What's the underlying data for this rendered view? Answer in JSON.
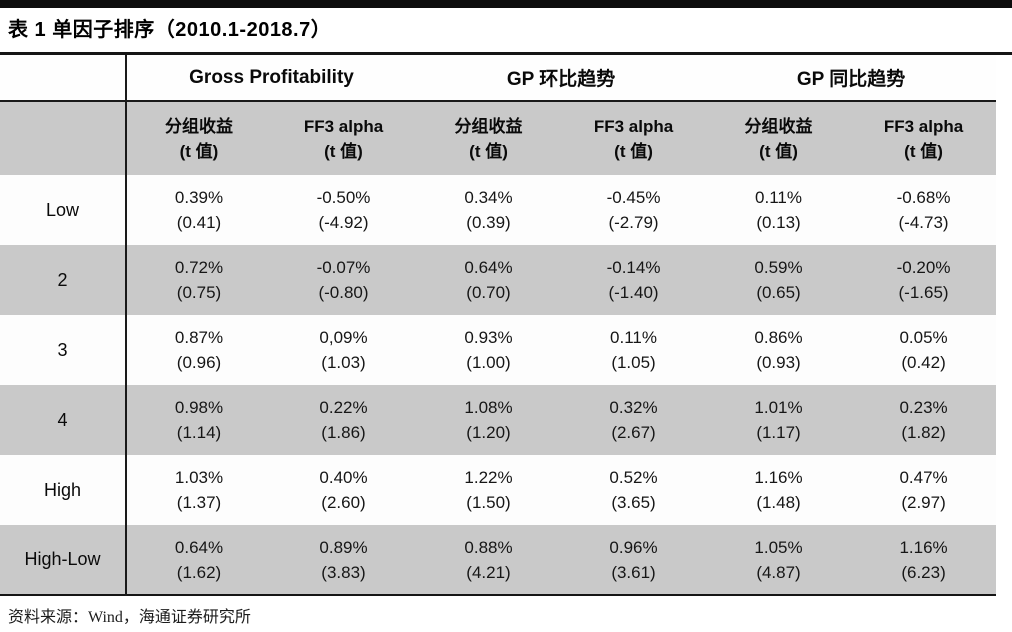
{
  "page": {
    "title": "表 1 单因子排序（2010.1-2018.7）",
    "source_note": "资料来源：Wind，海通证券研究所"
  },
  "colors": {
    "shaded_row": "#c9c9c9",
    "rule": "#151515",
    "text": "#111111"
  },
  "table": {
    "corner_label": "",
    "groups": [
      {
        "label": "Gross Profitability"
      },
      {
        "label": "GP 环比趋势"
      },
      {
        "label": "GP 同比趋势"
      }
    ],
    "subheaders": [
      {
        "line1": "分组收益",
        "line2": "(t 值)"
      },
      {
        "line1": "FF3 alpha",
        "line2": "(t 值)"
      },
      {
        "line1": "分组收益",
        "line2": "(t 值)"
      },
      {
        "line1": "FF3 alpha",
        "line2": "(t 值)"
      },
      {
        "line1": "分组收益",
        "line2": "(t 值)"
      },
      {
        "line1": "FF3 alpha",
        "line2": "(t 值)"
      }
    ],
    "rows": [
      {
        "label": "Low",
        "shaded": false,
        "cells": [
          {
            "value": "0.39%",
            "t": "(0.41)"
          },
          {
            "value": "-0.50%",
            "t": "(-4.92)"
          },
          {
            "value": "0.34%",
            "t": "(0.39)"
          },
          {
            "value": "-0.45%",
            "t": "(-2.79)"
          },
          {
            "value": "0.11%",
            "t": "(0.13)"
          },
          {
            "value": "-0.68%",
            "t": "(-4.73)"
          }
        ]
      },
      {
        "label": "2",
        "shaded": true,
        "cells": [
          {
            "value": "0.72%",
            "t": "(0.75)"
          },
          {
            "value": "-0.07%",
            "t": "(-0.80)"
          },
          {
            "value": "0.64%",
            "t": "(0.70)"
          },
          {
            "value": "-0.14%",
            "t": "(-1.40)"
          },
          {
            "value": "0.59%",
            "t": "(0.65)"
          },
          {
            "value": "-0.20%",
            "t": "(-1.65)"
          }
        ]
      },
      {
        "label": "3",
        "shaded": false,
        "cells": [
          {
            "value": "0.87%",
            "t": "(0.96)"
          },
          {
            "value": "0,09%",
            "t": "(1.03)"
          },
          {
            "value": "0.93%",
            "t": "(1.00)"
          },
          {
            "value": "0.11%",
            "t": "(1.05)"
          },
          {
            "value": "0.86%",
            "t": "(0.93)"
          },
          {
            "value": "0.05%",
            "t": "(0.42)"
          }
        ]
      },
      {
        "label": "4",
        "shaded": true,
        "cells": [
          {
            "value": "0.98%",
            "t": "(1.14)"
          },
          {
            "value": "0.22%",
            "t": "(1.86)"
          },
          {
            "value": "1.08%",
            "t": "(1.20)"
          },
          {
            "value": "0.32%",
            "t": "(2.67)"
          },
          {
            "value": "1.01%",
            "t": "(1.17)"
          },
          {
            "value": "0.23%",
            "t": "(1.82)"
          }
        ]
      },
      {
        "label": "High",
        "shaded": false,
        "cells": [
          {
            "value": "1.03%",
            "t": "(1.37)"
          },
          {
            "value": "0.40%",
            "t": "(2.60)"
          },
          {
            "value": "1.22%",
            "t": "(1.50)"
          },
          {
            "value": "0.52%",
            "t": "(3.65)"
          },
          {
            "value": "1.16%",
            "t": "(1.48)"
          },
          {
            "value": "0.47%",
            "t": "(2.97)"
          }
        ]
      },
      {
        "label": "High-Low",
        "shaded": true,
        "cells": [
          {
            "value": "0.64%",
            "t": "(1.62)"
          },
          {
            "value": "0.89%",
            "t": "(3.83)"
          },
          {
            "value": "0.88%",
            "t": "(4.21)"
          },
          {
            "value": "0.96%",
            "t": "(3.61)"
          },
          {
            "value": "1.05%",
            "t": "(4.87)"
          },
          {
            "value": "1.16%",
            "t": "(6.23)"
          }
        ]
      }
    ]
  }
}
